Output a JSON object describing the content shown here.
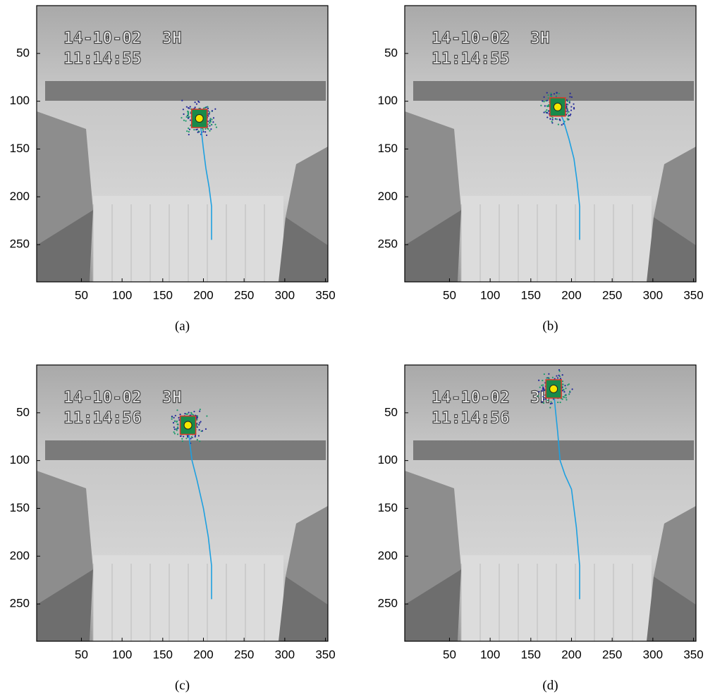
{
  "axes": {
    "xlim": [
      -5,
      353
    ],
    "ylim": [
      0,
      289
    ],
    "y_direction": "reverse",
    "xticks": [
      50,
      100,
      150,
      200,
      250,
      300,
      350
    ],
    "yticks": [
      50,
      100,
      150,
      200,
      250
    ]
  },
  "panels": [
    {
      "caption": "(a)",
      "date": "14-10-02",
      "channel": "3H",
      "time": "11:14:55",
      "target": {
        "x": 195,
        "y": 118
      },
      "track": {
        "x": [
          210,
          210,
          207,
          203,
          200,
          198,
          195
        ],
        "y": [
          245,
          210,
          190,
          170,
          150,
          135,
          118
        ]
      }
    },
    {
      "caption": "(b)",
      "date": "14-10-02",
      "channel": "3H",
      "time": "11:14:55",
      "target": {
        "x": 183,
        "y": 106
      },
      "track": {
        "x": [
          210,
          210,
          207,
          203,
          197,
          190,
          183
        ],
        "y": [
          245,
          210,
          185,
          160,
          140,
          120,
          106
        ]
      }
    },
    {
      "caption": "(c)",
      "date": "14-10-02",
      "channel": "3H",
      "time": "11:14:56",
      "target": {
        "x": 181,
        "y": 63
      },
      "track": {
        "x": [
          210,
          210,
          206,
          200,
          192,
          186,
          183,
          181
        ],
        "y": [
          245,
          210,
          180,
          150,
          120,
          100,
          80,
          63
        ]
      }
    },
    {
      "caption": "(d)",
      "date": "14-10-02",
      "channel": "3H",
      "time": "11:14:56",
      "target": {
        "x": 178,
        "y": 25
      },
      "track": {
        "x": [
          210,
          210,
          206,
          200,
          192,
          186,
          183,
          180,
          178
        ],
        "y": [
          245,
          210,
          170,
          130,
          115,
          100,
          70,
          45,
          25
        ]
      }
    }
  ]
}
